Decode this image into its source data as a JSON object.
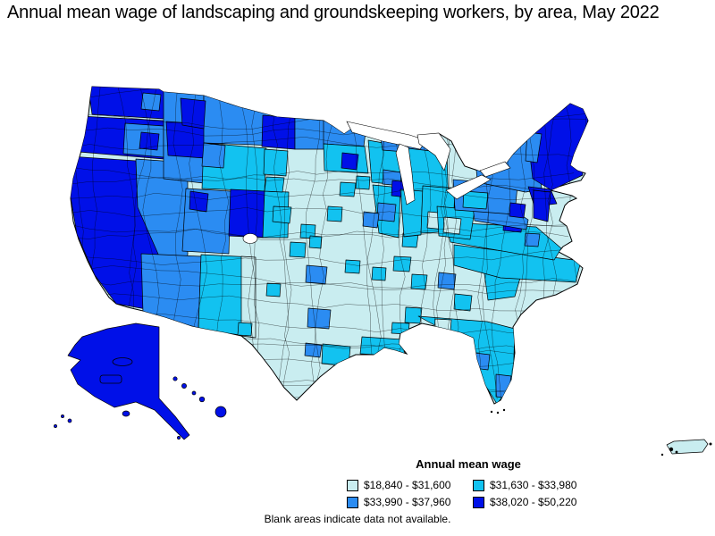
{
  "title": "Annual mean wage of landscaping and groundskeeping workers, by area, May 2022",
  "legend": {
    "title": "Annual mean wage"
  },
  "footnote": "Blank areas indicate data not available.",
  "chart_data": {
    "type": "choropleth",
    "title": "Annual mean wage of landscaping and groundskeeping workers, by area, May 2022",
    "legend_title": "Annual mean wage",
    "unit": "USD per year",
    "classes": [
      {
        "label": "$18,840 - $31,600",
        "range": [
          18840,
          31600
        ],
        "color": "#c9edf0"
      },
      {
        "label": "$31,630 - $33,980",
        "range": [
          31630,
          33980
        ],
        "color": "#12c2f0"
      },
      {
        "label": "$33,990 - $37,960",
        "range": [
          33990,
          37960
        ],
        "color": "#2b8cf2"
      },
      {
        "label": "$38,020 - $50,220",
        "range": [
          38020,
          50220
        ],
        "color": "#0010e8"
      }
    ],
    "no_data": {
      "color": "#ffffff",
      "note": "Blank areas indicate data not available."
    },
    "regions": {
      "BASE": 1,
      "WA": 4,
      "WA_SPOKANE": 3,
      "OR_W": 4,
      "OR_E": 3,
      "OR_E_DARK": 4,
      "CA": 4,
      "NV": 3,
      "ID": 3,
      "ID_C": 4,
      "MT": 3,
      "MT_NW": 4,
      "WY": 2,
      "WY_W": 3,
      "UT": 3,
      "UT_SLC": 4,
      "CO_W": 4,
      "CO_E": 2,
      "AZ": 3,
      "NM": 2,
      "NM_E": 1,
      "ND_W": 4,
      "ND_E": 3,
      "SD_W": 2,
      "NE_W": 2,
      "MN_N": 3,
      "MN_S": 2,
      "MSP": 4,
      "WI": 2,
      "WI_SE": 3,
      "MI_UP": 3,
      "MI": 2,
      "DETROIT": 3,
      "IA_DSM": 2,
      "IA_E": 2,
      "IL": 2,
      "IL_C": 3,
      "CHI": 4,
      "STL": 3,
      "KC": 2,
      "KS_W": 2,
      "WICHITA": 2,
      "OKC": 2,
      "TULSA": 2,
      "DFW": 3,
      "AUSTIN": 3,
      "SA": 3,
      "HOU": 2,
      "ELP": 2,
      "TX_W": 2,
      "LR": 2,
      "MEM": 2,
      "NASH": 2,
      "LOU": 2,
      "IN": 2,
      "OH": 2,
      "OH_S": 1,
      "LA_S": 2,
      "MS_C": 2,
      "BHM": 2,
      "AL_S": 2,
      "ATL": 3,
      "GA_E": 2,
      "FL": 2,
      "TAMPA": 3,
      "MIA": 3,
      "FL_PAN": 1,
      "SC": 2,
      "NC": 2,
      "VA": 2,
      "DC": 4,
      "RICH": 3,
      "WV": 2,
      "WV_PALE": 1,
      "MD": 3,
      "PA": 3,
      "PA_C": 2,
      "PHL": 4,
      "NY": 3,
      "NYC": 4,
      "NJ": 4,
      "NE_ENG": 4,
      "VT": 3,
      "AK": 4,
      "HI": 4,
      "PR": 1
    }
  }
}
